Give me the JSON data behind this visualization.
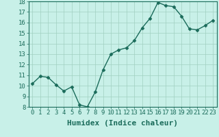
{
  "x": [
    0,
    1,
    2,
    3,
    4,
    5,
    6,
    7,
    8,
    9,
    10,
    11,
    12,
    13,
    14,
    15,
    16,
    17,
    18,
    19,
    20,
    21,
    22,
    23
  ],
  "y": [
    10.2,
    10.9,
    10.8,
    10.1,
    9.5,
    9.9,
    8.2,
    8.0,
    9.4,
    11.5,
    13.0,
    13.4,
    13.6,
    14.3,
    15.5,
    16.4,
    17.9,
    17.6,
    17.5,
    16.6,
    15.4,
    15.3,
    15.7,
    16.2
  ],
  "xlabel": "Humidex (Indice chaleur)",
  "ylim": [
    8,
    18
  ],
  "xlim_min": -0.5,
  "xlim_max": 23.5,
  "yticks": [
    8,
    9,
    10,
    11,
    12,
    13,
    14,
    15,
    16,
    17,
    18
  ],
  "xticks": [
    0,
    1,
    2,
    3,
    4,
    5,
    6,
    7,
    8,
    9,
    10,
    11,
    12,
    13,
    14,
    15,
    16,
    17,
    18,
    19,
    20,
    21,
    22,
    23
  ],
  "line_color": "#1a6b5a",
  "marker": "D",
  "marker_size": 2.5,
  "bg_color": "#c8f0e8",
  "grid_color": "#a0cfc0",
  "xlabel_fontsize": 8,
  "tick_fontsize": 6.5,
  "linewidth": 1.0
}
